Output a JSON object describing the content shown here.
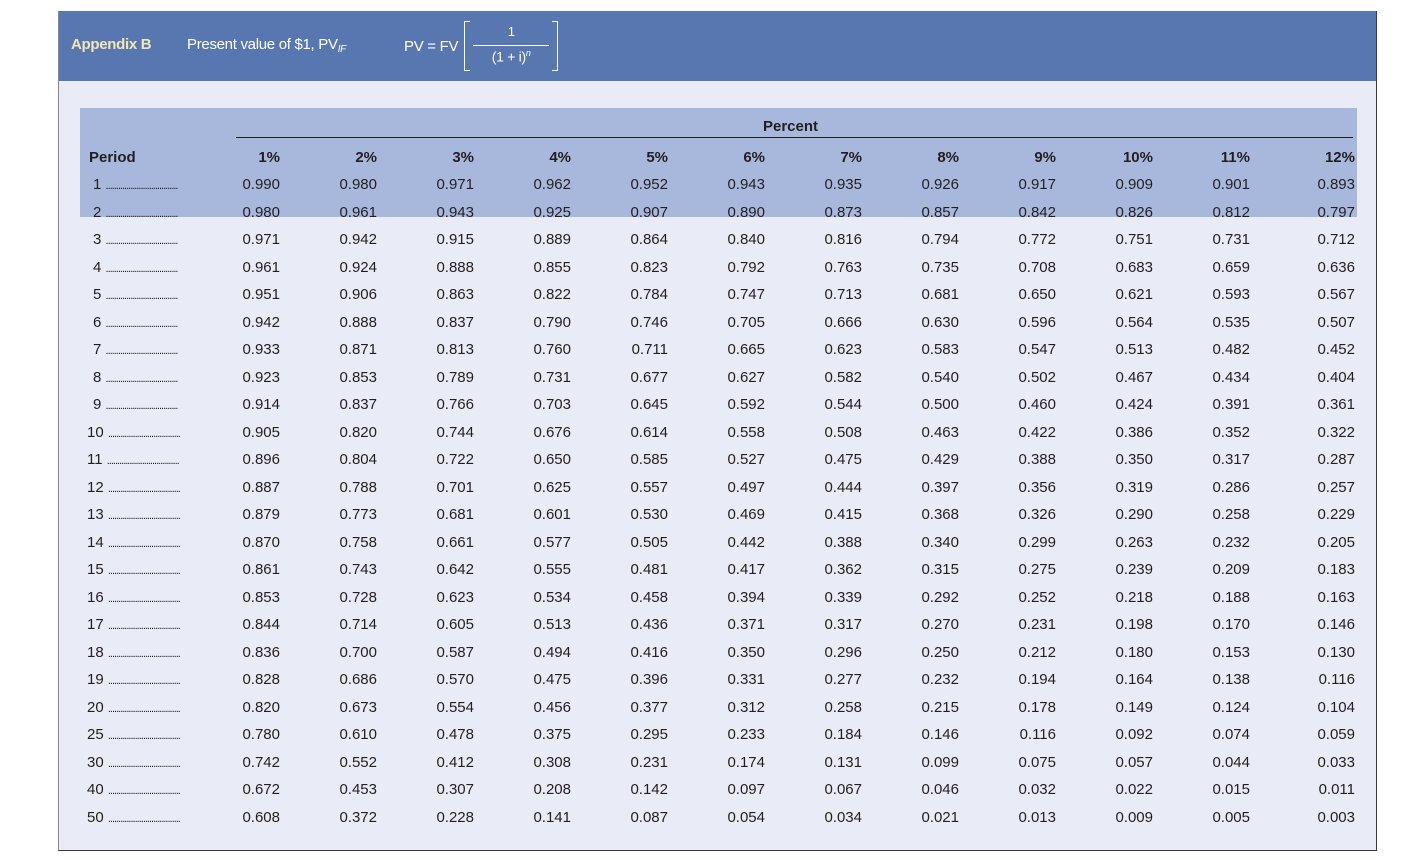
{
  "header": {
    "appendix": "Appendix B",
    "title": "Present value of $1, PV",
    "title_sub": "IF",
    "formula_lhs": "PV = FV",
    "formula_num": "1",
    "formula_den": "(1 + i)",
    "formula_exp": "n"
  },
  "table": {
    "group_label": "Percent",
    "period_label": "Period",
    "columns": [
      "1%",
      "2%",
      "3%",
      "4%",
      "5%",
      "6%",
      "7%",
      "8%",
      "9%",
      "10%",
      "11%",
      "12%"
    ],
    "dots": "...................................",
    "rows": [
      {
        "period": "1",
        "values": [
          "0.990",
          "0.980",
          "0.971",
          "0.962",
          "0.952",
          "0.943",
          "0.935",
          "0.926",
          "0.917",
          "0.909",
          "0.901",
          "0.893"
        ]
      },
      {
        "period": "2",
        "values": [
          "0.980",
          "0.961",
          "0.943",
          "0.925",
          "0.907",
          "0.890",
          "0.873",
          "0.857",
          "0.842",
          "0.826",
          "0.812",
          "0.797"
        ]
      },
      {
        "period": "3",
        "values": [
          "0.971",
          "0.942",
          "0.915",
          "0.889",
          "0.864",
          "0.840",
          "0.816",
          "0.794",
          "0.772",
          "0.751",
          "0.731",
          "0.712"
        ]
      },
      {
        "period": "4",
        "values": [
          "0.961",
          "0.924",
          "0.888",
          "0.855",
          "0.823",
          "0.792",
          "0.763",
          "0.735",
          "0.708",
          "0.683",
          "0.659",
          "0.636"
        ]
      },
      {
        "period": "5",
        "values": [
          "0.951",
          "0.906",
          "0.863",
          "0.822",
          "0.784",
          "0.747",
          "0.713",
          "0.681",
          "0.650",
          "0.621",
          "0.593",
          "0.567"
        ]
      },
      {
        "period": "6",
        "values": [
          "0.942",
          "0.888",
          "0.837",
          "0.790",
          "0.746",
          "0.705",
          "0.666",
          "0.630",
          "0.596",
          "0.564",
          "0.535",
          "0.507"
        ]
      },
      {
        "period": "7",
        "values": [
          "0.933",
          "0.871",
          "0.813",
          "0.760",
          "0.711",
          "0.665",
          "0.623",
          "0.583",
          "0.547",
          "0.513",
          "0.482",
          "0.452"
        ]
      },
      {
        "period": "8",
        "values": [
          "0.923",
          "0.853",
          "0.789",
          "0.731",
          "0.677",
          "0.627",
          "0.582",
          "0.540",
          "0.502",
          "0.467",
          "0.434",
          "0.404"
        ]
      },
      {
        "period": "9",
        "values": [
          "0.914",
          "0.837",
          "0.766",
          "0.703",
          "0.645",
          "0.592",
          "0.544",
          "0.500",
          "0.460",
          "0.424",
          "0.391",
          "0.361"
        ]
      },
      {
        "period": "10",
        "values": [
          "0.905",
          "0.820",
          "0.744",
          "0.676",
          "0.614",
          "0.558",
          "0.508",
          "0.463",
          "0.422",
          "0.386",
          "0.352",
          "0.322"
        ]
      },
      {
        "period": "11",
        "values": [
          "0.896",
          "0.804",
          "0.722",
          "0.650",
          "0.585",
          "0.527",
          "0.475",
          "0.429",
          "0.388",
          "0.350",
          "0.317",
          "0.287"
        ]
      },
      {
        "period": "12",
        "values": [
          "0.887",
          "0.788",
          "0.701",
          "0.625",
          "0.557",
          "0.497",
          "0.444",
          "0.397",
          "0.356",
          "0.319",
          "0.286",
          "0.257"
        ]
      },
      {
        "period": "13",
        "values": [
          "0.879",
          "0.773",
          "0.681",
          "0.601",
          "0.530",
          "0.469",
          "0.415",
          "0.368",
          "0.326",
          "0.290",
          "0.258",
          "0.229"
        ]
      },
      {
        "period": "14",
        "values": [
          "0.870",
          "0.758",
          "0.661",
          "0.577",
          "0.505",
          "0.442",
          "0.388",
          "0.340",
          "0.299",
          "0.263",
          "0.232",
          "0.205"
        ]
      },
      {
        "period": "15",
        "values": [
          "0.861",
          "0.743",
          "0.642",
          "0.555",
          "0.481",
          "0.417",
          "0.362",
          "0.315",
          "0.275",
          "0.239",
          "0.209",
          "0.183"
        ]
      },
      {
        "period": "16",
        "values": [
          "0.853",
          "0.728",
          "0.623",
          "0.534",
          "0.458",
          "0.394",
          "0.339",
          "0.292",
          "0.252",
          "0.218",
          "0.188",
          "0.163"
        ]
      },
      {
        "period": "17",
        "values": [
          "0.844",
          "0.714",
          "0.605",
          "0.513",
          "0.436",
          "0.371",
          "0.317",
          "0.270",
          "0.231",
          "0.198",
          "0.170",
          "0.146"
        ]
      },
      {
        "period": "18",
        "values": [
          "0.836",
          "0.700",
          "0.587",
          "0.494",
          "0.416",
          "0.350",
          "0.296",
          "0.250",
          "0.212",
          "0.180",
          "0.153",
          "0.130"
        ]
      },
      {
        "period": "19",
        "values": [
          "0.828",
          "0.686",
          "0.570",
          "0.475",
          "0.396",
          "0.331",
          "0.277",
          "0.232",
          "0.194",
          "0.164",
          "0.138",
          "0.116"
        ]
      },
      {
        "period": "20",
        "values": [
          "0.820",
          "0.673",
          "0.554",
          "0.456",
          "0.377",
          "0.312",
          "0.258",
          "0.215",
          "0.178",
          "0.149",
          "0.124",
          "0.104"
        ]
      },
      {
        "period": "25",
        "values": [
          "0.780",
          "0.610",
          "0.478",
          "0.375",
          "0.295",
          "0.233",
          "0.184",
          "0.146",
          "0.116",
          "0.092",
          "0.074",
          "0.059"
        ]
      },
      {
        "period": "30",
        "values": [
          "0.742",
          "0.552",
          "0.412",
          "0.308",
          "0.231",
          "0.174",
          "0.131",
          "0.099",
          "0.075",
          "0.057",
          "0.044",
          "0.033"
        ]
      },
      {
        "period": "40",
        "values": [
          "0.672",
          "0.453",
          "0.307",
          "0.208",
          "0.142",
          "0.097",
          "0.067",
          "0.046",
          "0.032",
          "0.022",
          "0.015",
          "0.011"
        ]
      },
      {
        "period": "50",
        "values": [
          "0.608",
          "0.372",
          "0.228",
          "0.141",
          "0.087",
          "0.054",
          "0.034",
          "0.021",
          "0.013",
          "0.009",
          "0.005",
          "0.003"
        ]
      }
    ]
  },
  "colors": {
    "banner": "#5877b1",
    "appendix_text": "#f3e6b4",
    "header_band": "#a8b8dd",
    "body_bg": "#e9ebf6"
  }
}
